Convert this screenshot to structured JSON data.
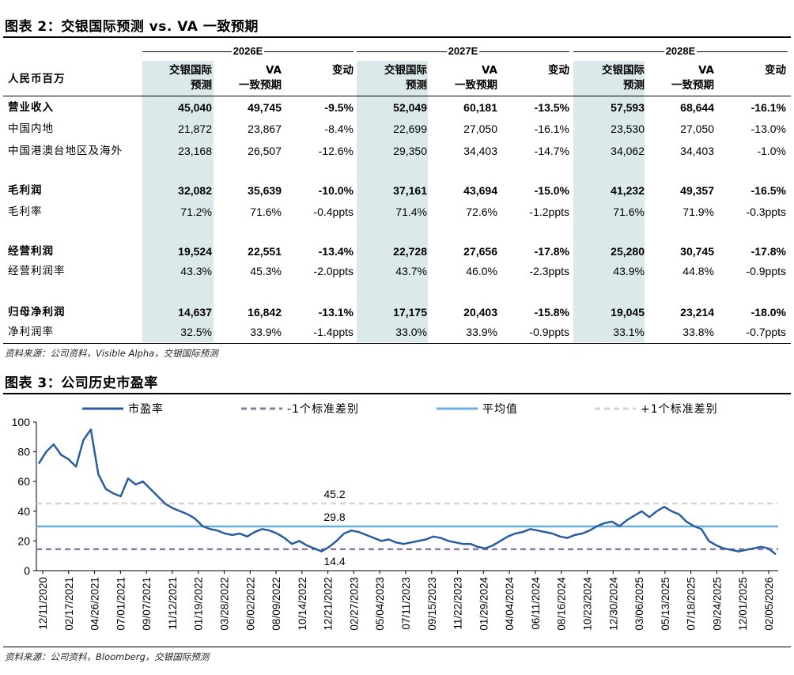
{
  "table": {
    "title": "图表 2：交银国际预测 vs. VA 一致预期",
    "unit_label": "人民币百万",
    "groups": [
      "2026E",
      "2027E",
      "2028E"
    ],
    "col_headers": [
      {
        "l1": "交银国际",
        "l2": "预测"
      },
      {
        "l1": "VA",
        "l2": "一致预期"
      },
      {
        "l1": "变动",
        "l2": ""
      }
    ],
    "rows": [
      {
        "label": "营业收入",
        "bold": true,
        "values": [
          "45,040",
          "49,745",
          "-9.5%",
          "52,049",
          "60,181",
          "-13.5%",
          "57,593",
          "68,644",
          "-16.1%"
        ]
      },
      {
        "label": "中国内地",
        "bold": false,
        "values": [
          "21,872",
          "23,867",
          "-8.4%",
          "22,699",
          "27,050",
          "-16.1%",
          "23,530",
          "27,050",
          "-13.0%"
        ]
      },
      {
        "label": "中国港澳台地区及海外",
        "bold": false,
        "values": [
          "23,168",
          "26,507",
          "-12.6%",
          "29,350",
          "34,403",
          "-14.7%",
          "34,062",
          "34,403",
          "-1.0%"
        ]
      },
      {
        "label": "毛利润",
        "bold": true,
        "values": [
          "32,082",
          "35,639",
          "-10.0%",
          "37,161",
          "43,694",
          "-15.0%",
          "41,232",
          "49,357",
          "-16.5%"
        ]
      },
      {
        "label": "毛利率",
        "bold": false,
        "values": [
          "71.2%",
          "71.6%",
          "-0.4ppts",
          "71.4%",
          "72.6%",
          "-1.2ppts",
          "71.6%",
          "71.9%",
          "-0.3ppts"
        ]
      },
      {
        "label": "经营利润",
        "bold": true,
        "values": [
          "19,524",
          "22,551",
          "-13.4%",
          "22,728",
          "27,656",
          "-17.8%",
          "25,280",
          "30,745",
          "-17.8%"
        ]
      },
      {
        "label": "经营利润率",
        "bold": false,
        "values": [
          "43.3%",
          "45.3%",
          "-2.0ppts",
          "43.7%",
          "46.0%",
          "-2.3ppts",
          "43.9%",
          "44.8%",
          "-0.9ppts"
        ]
      },
      {
        "label": "归母净利润",
        "bold": true,
        "values": [
          "14,637",
          "16,842",
          "-13.1%",
          "17,175",
          "20,403",
          "-15.8%",
          "19,045",
          "23,214",
          "-18.0%"
        ]
      },
      {
        "label": "净利润率",
        "bold": false,
        "values": [
          "32.5%",
          "33.9%",
          "-1.4ppts",
          "33.0%",
          "33.9%",
          "-0.9ppts",
          "33.1%",
          "33.8%",
          "-0.7ppts"
        ]
      }
    ],
    "source": "资料来源：公司资料，Visible Alpha，交银国际预测"
  },
  "chart": {
    "title": "图表 3：公司历史市盈率",
    "source": "资料来源：公司资料，Bloomberg，交银国际预测"
  },
  "chart_data": {
    "type": "line",
    "ylim": [
      0,
      100
    ],
    "yticks": [
      0,
      20,
      40,
      60,
      80,
      100
    ],
    "x_ticks": [
      "12/11/2020",
      "02/17/2021",
      "04/26/2021",
      "07/01/2021",
      "09/07/2021",
      "11/12/2021",
      "01/19/2022",
      "03/28/2022",
      "06/02/2022",
      "08/09/2022",
      "10/14/2022",
      "12/21/2022",
      "02/27/2023",
      "05/04/2023",
      "07/11/2023",
      "09/15/2023",
      "11/22/2023",
      "01/29/2024",
      "04/04/2024",
      "06/11/2024",
      "08/16/2024",
      "10/23/2024",
      "12/30/2024",
      "03/06/2025",
      "05/13/2025",
      "07/18/2025",
      "09/24/2025",
      "12/01/2025",
      "02/05/2026"
    ],
    "legend": [
      "市盈率",
      "-1个标准差别",
      "平均值",
      "+1个标准差别"
    ],
    "legend_position": "top",
    "series": [
      {
        "name": "市盈率",
        "color": "#2a5da0",
        "values": [
          72,
          80,
          85,
          78,
          75,
          70,
          88,
          95,
          65,
          55,
          52,
          50,
          62,
          58,
          60,
          55,
          50,
          45,
          42,
          40,
          38,
          35,
          30,
          28,
          27,
          25,
          24,
          25,
          23,
          26,
          28,
          27,
          25,
          22,
          18,
          20,
          17,
          15,
          13,
          16,
          20,
          25,
          27,
          26,
          24,
          22,
          20,
          21,
          19,
          18,
          19,
          20,
          21,
          23,
          22,
          20,
          19,
          18,
          18,
          16,
          15,
          17,
          20,
          23,
          25,
          26,
          28,
          27,
          26,
          25,
          23,
          22,
          24,
          25,
          27,
          30,
          32,
          33,
          30,
          34,
          37,
          40,
          36,
          40,
          43,
          40,
          38,
          33,
          30,
          28,
          20,
          17,
          15,
          14,
          13,
          14,
          15,
          16,
          15,
          11
        ]
      },
      {
        "name": "平均值",
        "color": "#6aaee6",
        "constant": 29.8
      },
      {
        "name": "-1个标准差别",
        "color": "#8a7aa0",
        "constant": 14.4
      },
      {
        "name": "+1个标准差别",
        "color": "#d6d6d6",
        "constant": 45.2
      }
    ],
    "annotations": [
      "45.2",
      "29.8",
      "14.4"
    ]
  }
}
